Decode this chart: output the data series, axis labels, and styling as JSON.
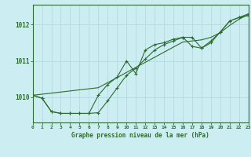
{
  "title": "Graphe pression niveau de la mer (hPa)",
  "bg_color": "#cceef2",
  "line_color": "#2d6a2d",
  "grid_color": "#b8dde0",
  "x_labels": [
    "0",
    "1",
    "2",
    "3",
    "4",
    "5",
    "6",
    "7",
    "8",
    "9",
    "10",
    "11",
    "12",
    "13",
    "14",
    "15",
    "16",
    "17",
    "18",
    "19",
    "20",
    "21",
    "22",
    "23"
  ],
  "y_ticks": [
    1010,
    1011,
    1012
  ],
  "ylim": [
    1009.3,
    1012.55
  ],
  "xlim": [
    0,
    23
  ],
  "series1": [
    1010.05,
    1009.97,
    1009.6,
    1009.55,
    1009.55,
    1009.55,
    1009.55,
    1009.57,
    1009.9,
    1010.25,
    1010.6,
    1010.8,
    1011.05,
    1011.3,
    1011.45,
    1011.55,
    1011.65,
    1011.4,
    1011.35,
    1011.55,
    1011.8,
    1012.1,
    1012.2,
    1012.3
  ],
  "series2": [
    1010.05,
    1009.97,
    1009.6,
    1009.55,
    1009.55,
    1009.55,
    1009.55,
    1010.05,
    1010.35,
    1010.55,
    1011.0,
    1010.65,
    1011.3,
    1011.45,
    1011.5,
    1011.6,
    1011.65,
    1011.65,
    1011.35,
    1011.5,
    1011.8,
    1012.1,
    1012.2,
    1012.25
  ],
  "series3": [
    1010.05,
    1010.08,
    1010.11,
    1010.14,
    1010.17,
    1010.2,
    1010.23,
    1010.26,
    1010.4,
    1010.54,
    1010.68,
    1010.82,
    1010.96,
    1011.1,
    1011.24,
    1011.38,
    1011.52,
    1011.55,
    1011.58,
    1011.65,
    1011.78,
    1011.98,
    1012.15,
    1012.28
  ]
}
